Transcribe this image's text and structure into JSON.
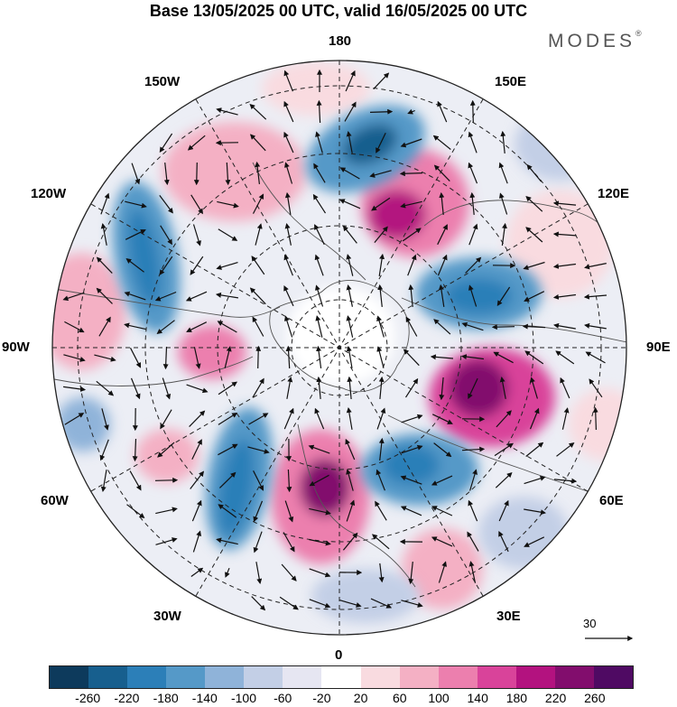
{
  "title": "Base 13/05/2025 00 UTC, valid 16/05/2025 00 UTC",
  "brand": "MODES",
  "brand_mark": "®",
  "longitude_labels": {
    "l180": "180",
    "l150e": "150E",
    "l120e": "120E",
    "l90e": "90E",
    "l60e": "60E",
    "l30e": "30E",
    "l0": "0",
    "l30w": "30W",
    "l60w": "60W",
    "l90w": "90W",
    "l120w": "120W",
    "l150w": "150W"
  },
  "vector_reference": "30",
  "colorbar": {
    "colors": [
      "#0d3a5c",
      "#175f8e",
      "#2c7fb8",
      "#5599c8",
      "#8fb3d9",
      "#c3cfe6",
      "#e6e6f2",
      "#ffffff",
      "#f9dbe0",
      "#f4b0c4",
      "#ec7fae",
      "#d9439a",
      "#b3127f",
      "#820d6d",
      "#4f0a63"
    ],
    "labels": [
      "-260",
      "-220",
      "-180",
      "-140",
      "-100",
      "-60",
      "-20",
      "20",
      "60",
      "100",
      "140",
      "180",
      "220",
      "260"
    ]
  }
}
